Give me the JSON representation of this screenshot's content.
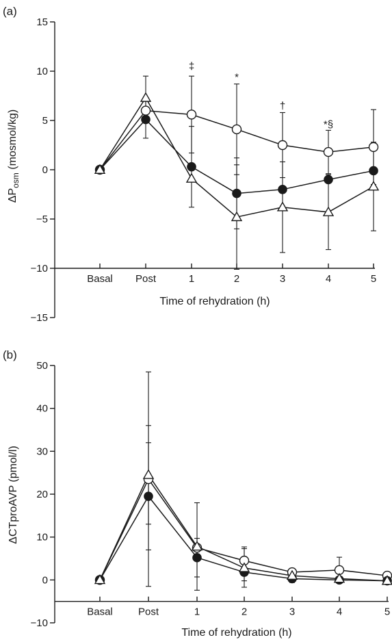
{
  "chart_data": [
    {
      "type": "line",
      "panel_label": "(a)",
      "xlabel": "Time of rehydration (h)",
      "ylabel_main": "ΔP",
      "ylabel_sub": "osm",
      "ylabel_unit": " (mosmol/kg)",
      "categories": [
        "Basal",
        "Post",
        "1",
        "2",
        "3",
        "4",
        "5"
      ],
      "ylim": [
        -15,
        15
      ],
      "yticks": [
        15,
        10,
        5,
        0,
        -5,
        -10,
        -15
      ],
      "ytick_labels": [
        "15",
        "10",
        "5",
        "0",
        "−5",
        "−10",
        "−15"
      ],
      "xaxis_at": -10,
      "series": [
        {
          "marker": "open-circle",
          "values": [
            0,
            6.0,
            5.6,
            4.1,
            2.5,
            1.8,
            2.3
          ],
          "errors": [
            0,
            0,
            3.9,
            4.6,
            3.3,
            2.2,
            3.8
          ]
        },
        {
          "marker": "filled-circle",
          "values": [
            0,
            5.1,
            0.3,
            -2.4,
            -2.0,
            -1.0,
            -0.1
          ],
          "errors": [
            0,
            1.9,
            4.1,
            3.6,
            0,
            0,
            0
          ]
        },
        {
          "marker": "open-triangle",
          "values": [
            0,
            7.3,
            -0.9,
            -4.8,
            -3.8,
            -4.3,
            -1.7
          ],
          "errors": [
            0,
            2.2,
            0,
            5.3,
            4.6,
            3.8,
            4.5
          ]
        }
      ],
      "annotations": [
        {
          "category": "1",
          "text": "‡",
          "y": 10.3
        },
        {
          "category": "2",
          "text": "*",
          "y": 9.2
        },
        {
          "category": "3",
          "text": "†",
          "y": 6.3
        },
        {
          "category": "4",
          "text": "*§",
          "y": 4.4
        }
      ]
    },
    {
      "type": "line",
      "panel_label": "(b)",
      "xlabel": "Time of rehydration (h)",
      "ylabel_main": "ΔCTproAVP (pmol/l)",
      "categories": [
        "Basal",
        "Post",
        "1",
        "2",
        "3",
        "4",
        "5"
      ],
      "ylim": [
        -10,
        50
      ],
      "yticks": [
        50,
        40,
        30,
        20,
        10,
        0,
        -10
      ],
      "ytick_labels": [
        "50",
        "40",
        "30",
        "20",
        "10",
        "0",
        "−10"
      ],
      "xaxis_at": -5,
      "series": [
        {
          "marker": "open-circle",
          "values": [
            0,
            23.5,
            7.5,
            4.5,
            1.8,
            2.3,
            1.0
          ],
          "errors": [
            0,
            25.0,
            0,
            3.2,
            0,
            3.0,
            0
          ]
        },
        {
          "marker": "filled-circle",
          "values": [
            0,
            19.5,
            5.2,
            1.8,
            0.3,
            0,
            -0.2
          ],
          "errors": [
            0,
            12.5,
            4.5,
            2.0,
            0.9,
            0,
            0
          ]
        },
        {
          "marker": "open-triangle",
          "values": [
            0,
            24.5,
            7.8,
            2.8,
            1.0,
            0.3,
            -0.2
          ],
          "errors": [
            0,
            11.5,
            10.2,
            4.5,
            0,
            0,
            0
          ]
        }
      ],
      "annotations": []
    }
  ]
}
